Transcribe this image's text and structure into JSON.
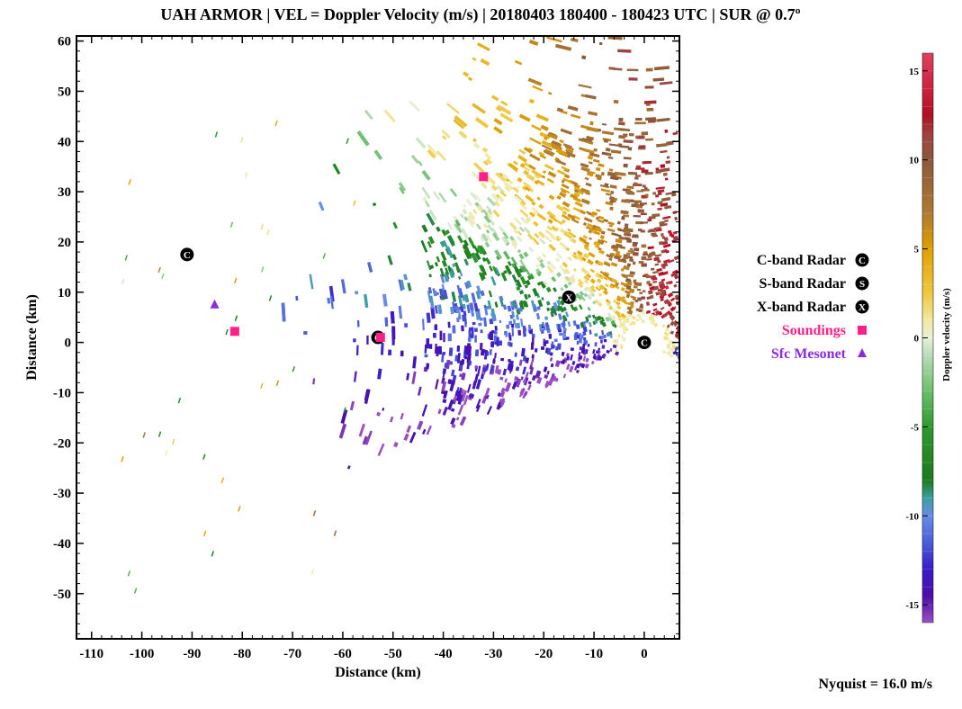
{
  "title": "UAH ARMOR | VEL = Doppler Velocity (m/s) | 20180403 180400 - 180423 UTC | SUR @ 0.7º",
  "footer": "Nyquist = 16.0 m/s",
  "colors": {
    "c_band": "#000000",
    "s_band": "#000000",
    "x_band": "#000000",
    "soundings": "#ff1f8a",
    "mesonet": "#8a2be2"
  },
  "chart_data": {
    "type": "scatter",
    "xlabel": "Distance (km)",
    "ylabel": "Distance (km)",
    "xlim": [
      -113,
      7
    ],
    "ylim": [
      -59,
      61
    ],
    "xticks": [
      -110,
      -100,
      -90,
      -80,
      -70,
      -60,
      -50,
      -40,
      -30,
      -20,
      -10,
      0
    ],
    "yticks": [
      60,
      50,
      40,
      30,
      20,
      10,
      0,
      -10,
      -20,
      -30,
      -40,
      -50
    ],
    "grid": false,
    "legend_position": "right",
    "legend": [
      {
        "label": "C-band Radar",
        "symbol": "C",
        "shape": "circle-letter",
        "color": "#000000"
      },
      {
        "label": "S-band Radar",
        "symbol": "S",
        "shape": "circle-letter",
        "color": "#000000"
      },
      {
        "label": "X-band Radar",
        "symbol": "X",
        "shape": "circle-letter",
        "color": "#000000"
      },
      {
        "label": "Soundings",
        "symbol": "square",
        "shape": "square",
        "color": "#ff1f8a"
      },
      {
        "label": "Sfc Mesonet",
        "symbol": "triangle",
        "shape": "triangle",
        "color": "#8a2be2"
      }
    ],
    "stations": [
      {
        "type": "C-band Radar",
        "symbol": "C",
        "x": -91,
        "y": 17.5
      },
      {
        "type": "C-band Radar",
        "symbol": "C",
        "x": 0,
        "y": 0
      },
      {
        "type": "C-band Radar",
        "symbol": "C",
        "x": -53,
        "y": 1
      },
      {
        "type": "X-band Radar",
        "symbol": "X",
        "x": -15,
        "y": 9
      },
      {
        "type": "Soundings",
        "symbol": "square",
        "x": -81.5,
        "y": 2.2
      },
      {
        "type": "Soundings",
        "symbol": "square",
        "x": -32,
        "y": 33
      },
      {
        "type": "Soundings",
        "symbol": "square",
        "x": -52.5,
        "y": 1
      },
      {
        "type": "Sfc Mesonet",
        "symbol": "triangle",
        "x": -85.5,
        "y": 7.5
      }
    ],
    "velocity_field": {
      "description": "PPI Doppler velocity field centered on radar at (0,0)",
      "regions": [
        {
          "sector": "north-east",
          "velocity_range_ms": [
            8,
            16
          ],
          "colors": [
            "#8b5a3c",
            "#c0263a"
          ]
        },
        {
          "sector": "north-west",
          "velocity_range_ms": [
            2,
            6
          ],
          "colors": [
            "#e0a800"
          ]
        },
        {
          "sector": "west",
          "velocity_range_ms": [
            -9,
            -1
          ],
          "colors": [
            "#1e8a1e",
            "#56b356"
          ]
        },
        {
          "sector": "south",
          "velocity_range_ms": [
            -15,
            -10
          ],
          "colors": [
            "#3a2fc0",
            "#5b6ee0"
          ]
        }
      ]
    },
    "colorbar": {
      "title": "Doppler velocity (m/s)",
      "min": -16,
      "max": 16,
      "ticks": [
        15,
        10,
        5,
        0,
        -5,
        -10,
        -15
      ],
      "stops": [
        {
          "value": -16,
          "color": "#9b4fc2"
        },
        {
          "value": -14.5,
          "color": "#4a10a8"
        },
        {
          "value": -13,
          "color": "#3a1ac8"
        },
        {
          "value": -11.5,
          "color": "#4a5fd8"
        },
        {
          "value": -10,
          "color": "#6b8ce8"
        },
        {
          "value": -9,
          "color": "#3aa0a0"
        },
        {
          "value": -8,
          "color": "#1d7a1d"
        },
        {
          "value": -5,
          "color": "#2e9a2e"
        },
        {
          "value": -3,
          "color": "#6cbf6c"
        },
        {
          "value": -1,
          "color": "#b8dcb8"
        },
        {
          "value": 0,
          "color": "#e8f0d8"
        },
        {
          "value": 1,
          "color": "#f2e8a0"
        },
        {
          "value": 2.5,
          "color": "#f0c840"
        },
        {
          "value": 5,
          "color": "#e0a000"
        },
        {
          "value": 7,
          "color": "#b07a30"
        },
        {
          "value": 10,
          "color": "#8b5a3c"
        },
        {
          "value": 11.5,
          "color": "#a04040"
        },
        {
          "value": 12.5,
          "color": "#b01020"
        },
        {
          "value": 14,
          "color": "#d02040"
        },
        {
          "value": 16,
          "color": "#e04060"
        }
      ]
    }
  }
}
